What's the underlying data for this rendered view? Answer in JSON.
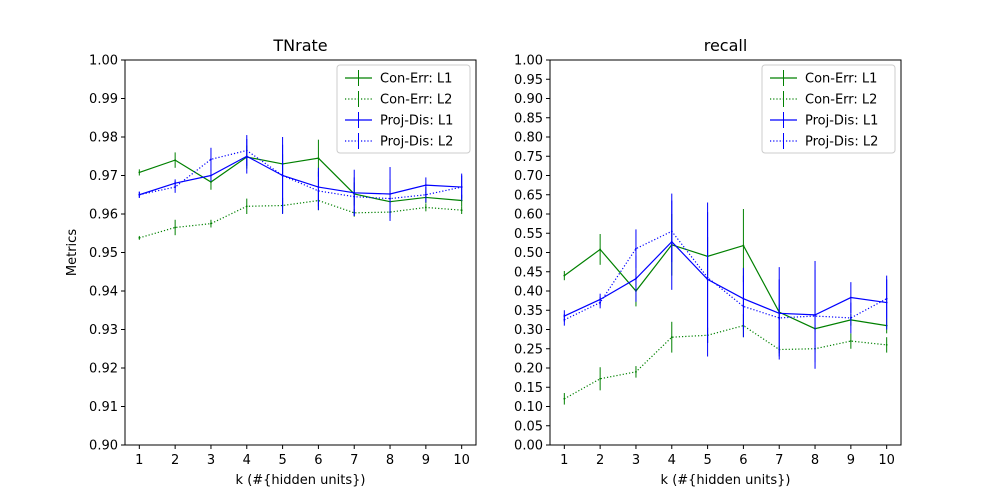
{
  "chart_data": [
    {
      "type": "line",
      "title": "TNrate",
      "xlabel": "k (#{hidden units})",
      "ylabel": "Metrics",
      "xlim": [
        0.6,
        10.4
      ],
      "ylim": [
        0.9,
        1.0
      ],
      "x_ticks": [
        1,
        2,
        3,
        4,
        5,
        6,
        7,
        8,
        9,
        10
      ],
      "y_ticks": [
        "0.90",
        "0.91",
        "0.92",
        "0.93",
        "0.94",
        "0.95",
        "0.96",
        "0.97",
        "0.98",
        "0.99",
        "1.00"
      ],
      "legend_position": "top-right",
      "x": [
        1,
        2,
        3,
        4,
        5,
        6,
        7,
        8,
        9,
        10
      ],
      "series": [
        {
          "name": "Con-Err: L1",
          "color": "#008000",
          "style": "solid",
          "values": [
            0.9708,
            0.974,
            0.9683,
            0.9748,
            0.973,
            0.9745,
            0.9652,
            0.9632,
            0.9643,
            0.9635
          ],
          "errors": [
            0.0008,
            0.002,
            0.002,
            0.003,
            0.0025,
            0.0048,
            0.003,
            0.0015,
            0.0015,
            0.0015
          ]
        },
        {
          "name": "Con-Err: L2",
          "color": "#008000",
          "style": "dotted",
          "values": [
            0.9538,
            0.9565,
            0.9575,
            0.962,
            0.9622,
            0.9635,
            0.9603,
            0.9605,
            0.9617,
            0.961
          ],
          "errors": [
            0.0005,
            0.002,
            0.001,
            0.002,
            0.002,
            0.0025,
            0.001,
            0.001,
            0.001,
            0.001
          ]
        },
        {
          "name": "Proj-Dis: L1",
          "color": "#0000ff",
          "style": "solid",
          "values": [
            0.965,
            0.968,
            0.97,
            0.975,
            0.97,
            0.967,
            0.9655,
            0.9652,
            0.9675,
            0.967
          ],
          "errors": [
            0.0008,
            0.001,
            0.0015,
            0.0045,
            0.01,
            0.005,
            0.006,
            0.007,
            0.002,
            0.0035
          ]
        },
        {
          "name": "Proj-Dis: L2",
          "color": "#0000ff",
          "style": "dotted",
          "values": [
            0.965,
            0.967,
            0.9742,
            0.9765,
            0.97,
            0.966,
            0.9645,
            0.964,
            0.965,
            0.967
          ],
          "errors": [
            0.0008,
            0.0015,
            0.003,
            0.004,
            0.008,
            0.005,
            0.005,
            0.005,
            0.002,
            0.003
          ]
        }
      ]
    },
    {
      "type": "line",
      "title": "recall",
      "xlabel": "k (#{hidden units})",
      "ylabel": "",
      "xlim": [
        0.6,
        10.4
      ],
      "ylim": [
        0.0,
        1.0
      ],
      "x_ticks": [
        1,
        2,
        3,
        4,
        5,
        6,
        7,
        8,
        9,
        10
      ],
      "y_ticks": [
        "0.00",
        "0.05",
        "0.10",
        "0.15",
        "0.20",
        "0.25",
        "0.30",
        "0.35",
        "0.40",
        "0.45",
        "0.50",
        "0.55",
        "0.60",
        "0.65",
        "0.70",
        "0.75",
        "0.80",
        "0.85",
        "0.90",
        "0.95",
        "1.00"
      ],
      "legend_position": "top-right",
      "x": [
        1,
        2,
        3,
        4,
        5,
        6,
        7,
        8,
        9,
        10
      ],
      "series": [
        {
          "name": "Con-Err: L1",
          "color": "#008000",
          "style": "solid",
          "values": [
            0.44,
            0.508,
            0.4,
            0.52,
            0.49,
            0.518,
            0.345,
            0.302,
            0.325,
            0.31
          ],
          "errors": [
            0.012,
            0.04,
            0.04,
            0.08,
            0.05,
            0.095,
            0.02,
            0.01,
            0.015,
            0.02
          ]
        },
        {
          "name": "Con-Err: L2",
          "color": "#008000",
          "style": "dotted",
          "values": [
            0.12,
            0.172,
            0.19,
            0.28,
            0.285,
            0.31,
            0.248,
            0.25,
            0.27,
            0.26
          ],
          "errors": [
            0.015,
            0.03,
            0.015,
            0.04,
            0.02,
            0.03,
            0.01,
            0.01,
            0.02,
            0.02
          ]
        },
        {
          "name": "Proj-Dis: L1",
          "color": "#0000ff",
          "style": "solid",
          "values": [
            0.335,
            0.378,
            0.432,
            0.528,
            0.43,
            0.38,
            0.342,
            0.338,
            0.383,
            0.37
          ],
          "errors": [
            0.015,
            0.015,
            0.06,
            0.125,
            0.2,
            0.08,
            0.12,
            0.14,
            0.04,
            0.07
          ]
        },
        {
          "name": "Proj-Dis: L2",
          "color": "#0000ff",
          "style": "dotted",
          "values": [
            0.325,
            0.37,
            0.51,
            0.555,
            0.435,
            0.36,
            0.33,
            0.335,
            0.33,
            0.38
          ],
          "errors": [
            0.015,
            0.015,
            0.05,
            0.08,
            0.17,
            0.08,
            0.1,
            0.12,
            0.04,
            0.05
          ]
        }
      ]
    }
  ]
}
